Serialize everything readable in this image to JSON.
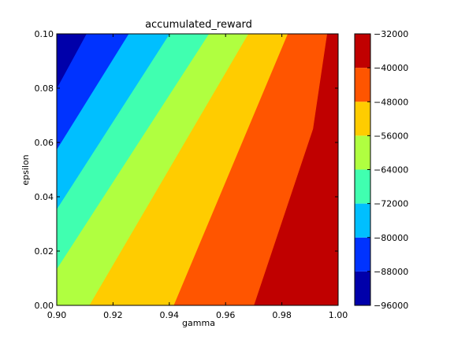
{
  "chart_data": {
    "type": "contourf",
    "title": "accumulated_reward",
    "xlabel": "gamma",
    "ylabel": "epsilon",
    "xlim": [
      0.9,
      1.0
    ],
    "ylim": [
      0.0,
      0.1
    ],
    "x_ticks": [
      "0.90",
      "0.92",
      "0.94",
      "0.96",
      "0.98",
      "1.00"
    ],
    "y_ticks": [
      "0.00",
      "0.02",
      "0.04",
      "0.06",
      "0.08",
      "0.10"
    ],
    "colorbar": {
      "levels": [
        -96000,
        -88000,
        -80000,
        -72000,
        -64000,
        -56000,
        -48000,
        -40000,
        -32000
      ],
      "tick_labels": [
        "−96000",
        "−88000",
        "−80000",
        "−72000",
        "−64000",
        "−56000",
        "−48000",
        "−40000",
        "−32000"
      ],
      "colors": [
        "#0000aa",
        "#0033ff",
        "#00bfff",
        "#40ffb0",
        "#b0ff40",
        "#ffcc00",
        "#ff5500",
        "#c00000"
      ]
    },
    "contour_bands": [
      {
        "range": [
          -96000,
          -88000
        ],
        "boundary_top": [
          [
            0.9,
            0.08
          ],
          [
            0.9,
            0.1
          ],
          [
            0.9105,
            0.1
          ]
        ]
      },
      {
        "range": [
          -88000,
          -80000
        ],
        "boundary_top": [
          [
            0.9,
            0.0575
          ],
          [
            0.9,
            0.1
          ],
          [
            0.9255,
            0.1
          ]
        ]
      },
      {
        "range": [
          -80000,
          -72000
        ],
        "boundary_top": [
          [
            0.9,
            0.0355
          ],
          [
            0.9,
            0.1
          ],
          [
            0.94,
            0.1
          ]
        ]
      },
      {
        "range": [
          -72000,
          -64000
        ],
        "boundary_top": [
          [
            0.9,
            0.0135
          ],
          [
            0.9,
            0.1
          ],
          [
            0.954,
            0.1
          ]
        ]
      },
      {
        "range": [
          -64000,
          -56000
        ],
        "boundary_top": [
          [
            0.9115,
            0.0
          ],
          [
            0.9,
            0.0
          ],
          [
            0.9,
            0.1
          ],
          [
            0.968,
            0.1
          ]
        ]
      },
      {
        "range": [
          -56000,
          -48000
        ],
        "boundary_top": [
          [
            0.9415,
            0.0
          ],
          [
            0.9,
            0.0
          ],
          [
            0.9,
            0.1
          ],
          [
            0.982,
            0.1
          ]
        ]
      },
      {
        "range": [
          -48000,
          -40000
        ],
        "boundary_top": [
          [
            0.97,
            0.0
          ],
          [
            0.9,
            0.0
          ],
          [
            0.9,
            0.1
          ],
          [
            0.996,
            0.1
          ],
          [
            0.991,
            0.065
          ]
        ]
      }
    ]
  }
}
